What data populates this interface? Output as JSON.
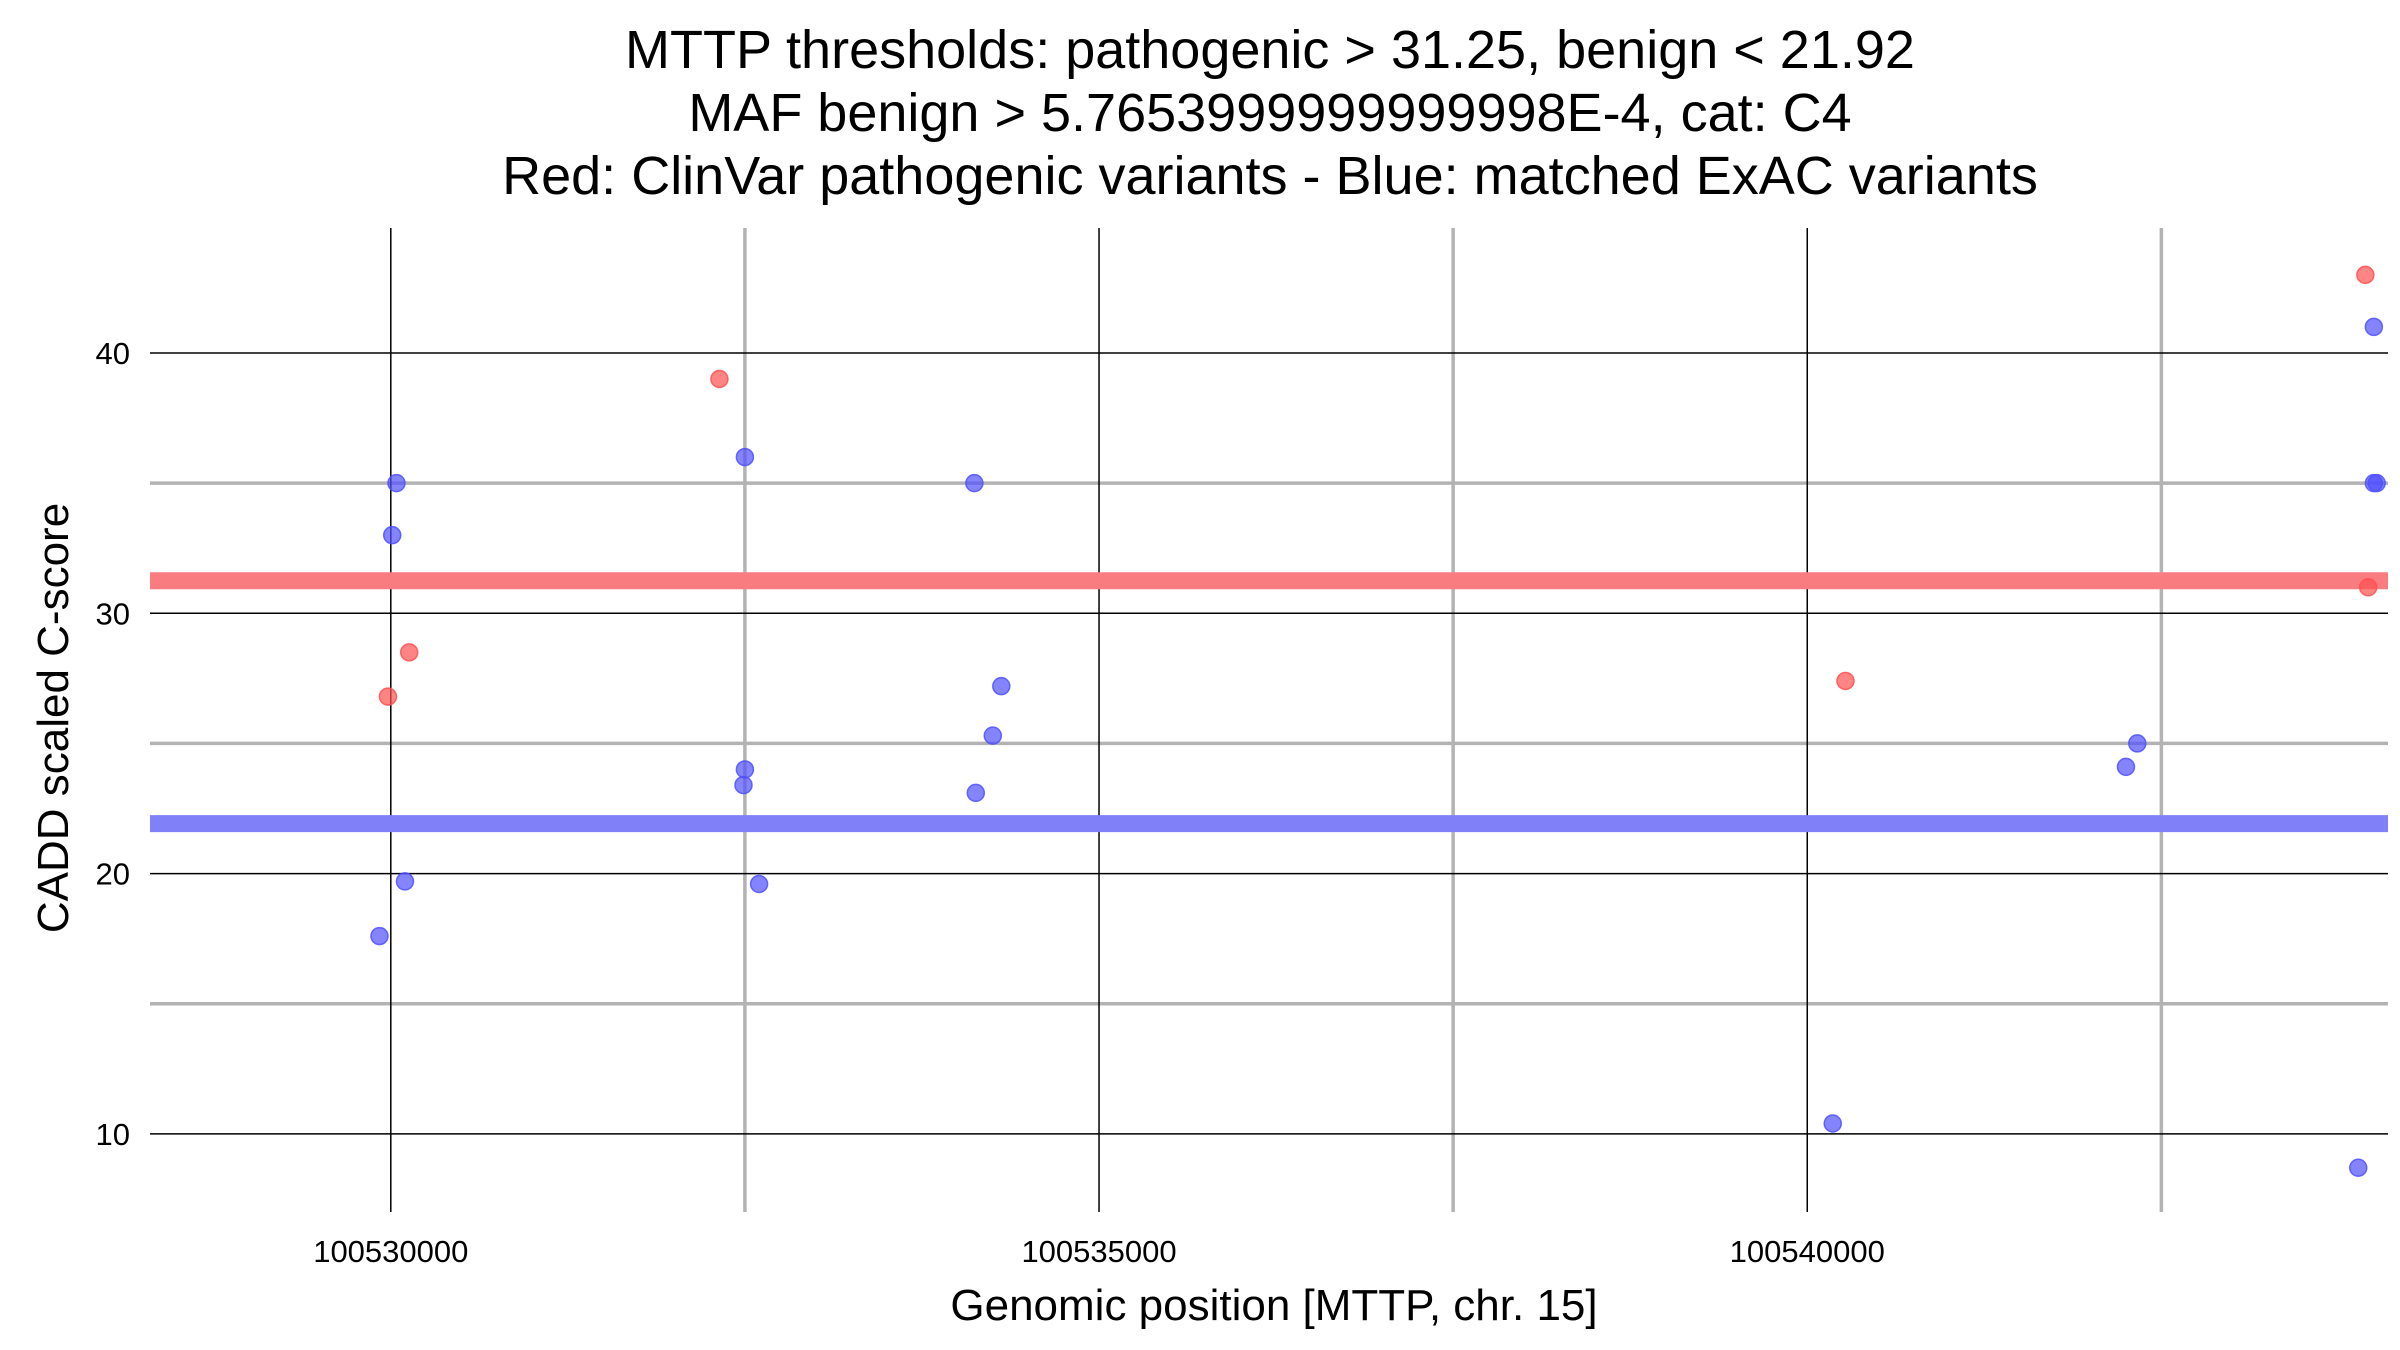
{
  "chart_data": {
    "type": "scatter",
    "title_lines": [
      "MTTP thresholds: pathogenic > 31.25, benign < 21.92",
      "MAF benign > 5.7653999999999998E-4, cat: C4",
      "Red: ClinVar pathogenic variants - Blue: matched ExAC variants"
    ],
    "xlabel": "Genomic position [MTTP, chr. 15]",
    "ylabel": "CADD scaled C-score",
    "xlim": [
      100528300,
      100544100
    ],
    "ylim": [
      7,
      44.8
    ],
    "x_ticks": [
      100530000,
      100535000,
      100540000
    ],
    "x_tick_labels": [
      "100530000",
      "100535000",
      "100540000"
    ],
    "x_minor_ticks": [
      100532500,
      100537500,
      100542500
    ],
    "y_ticks": [
      10,
      20,
      30,
      40
    ],
    "y_tick_labels": [
      "10",
      "20",
      "30",
      "40"
    ],
    "y_minor_ticks": [
      15,
      25,
      35
    ],
    "grid": true,
    "thresholds": [
      {
        "value": 31.25,
        "color": "#f87c80"
      },
      {
        "value": 21.92,
        "color": "#8080f8"
      }
    ],
    "colors": {
      "pathogenic": "#ff5050",
      "benign": "#5050ff"
    },
    "series": [
      {
        "class": "pathogenic",
        "points": [
          {
            "x": 100529980,
            "y": 26.8
          },
          {
            "x": 100530130,
            "y": 28.5
          },
          {
            "x": 100532320,
            "y": 39.0
          },
          {
            "x": 100540270,
            "y": 27.4
          },
          {
            "x": 100543940,
            "y": 43.0
          },
          {
            "x": 100543960,
            "y": 31.0
          }
        ]
      },
      {
        "class": "benign",
        "points": [
          {
            "x": 100529920,
            "y": 17.6
          },
          {
            "x": 100530010,
            "y": 33.0
          },
          {
            "x": 100530040,
            "y": 35.0
          },
          {
            "x": 100530100,
            "y": 19.7
          },
          {
            "x": 100532490,
            "y": 23.4
          },
          {
            "x": 100532500,
            "y": 36.0
          },
          {
            "x": 100532500,
            "y": 24.0
          },
          {
            "x": 100532600,
            "y": 19.6
          },
          {
            "x": 100534120,
            "y": 35.0
          },
          {
            "x": 100534130,
            "y": 23.1
          },
          {
            "x": 100534250,
            "y": 25.3
          },
          {
            "x": 100534310,
            "y": 27.2
          },
          {
            "x": 100540180,
            "y": 10.4
          },
          {
            "x": 100542250,
            "y": 24.1
          },
          {
            "x": 100542330,
            "y": 25.0
          },
          {
            "x": 100543890,
            "y": 8.7
          },
          {
            "x": 100544000,
            "y": 41.0
          },
          {
            "x": 100544000,
            "y": 35.0
          },
          {
            "x": 100544020,
            "y": 35.0
          }
        ]
      }
    ]
  }
}
